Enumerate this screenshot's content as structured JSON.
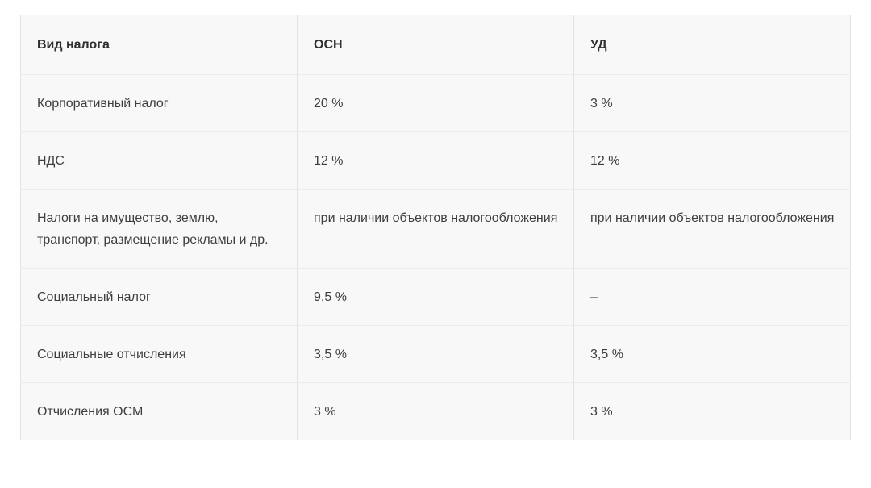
{
  "colors": {
    "page_bg": "#ffffff",
    "cell_bg": "#f8f8f9",
    "border_vertical": "#e1e2e8",
    "border_horizontal": "#ececee",
    "header_text": "#2f2f2f",
    "body_text": "#3e3e3e"
  },
  "table": {
    "columns": [
      "Вид налога",
      "ОСН",
      "УД"
    ],
    "rows": [
      {
        "cells": [
          "Корпоративный налог",
          "20 %",
          "3 %"
        ]
      },
      {
        "cells": [
          "НДС",
          "12 %",
          "12 %"
        ]
      },
      {
        "cells": [
          "Налоги на имущество, землю, транспорт, размещение рекламы и др.",
          "при наличии объектов налогообложения",
          "при наличии объектов налогообложения"
        ]
      },
      {
        "cells": [
          "Социальный налог",
          "9,5 %",
          "–"
        ]
      },
      {
        "cells": [
          "Социальные отчисления",
          "3,5 %",
          "3,5 %"
        ]
      },
      {
        "cells": [
          "Отчисления ОСМ",
          "3 %",
          "3 %"
        ]
      }
    ]
  }
}
